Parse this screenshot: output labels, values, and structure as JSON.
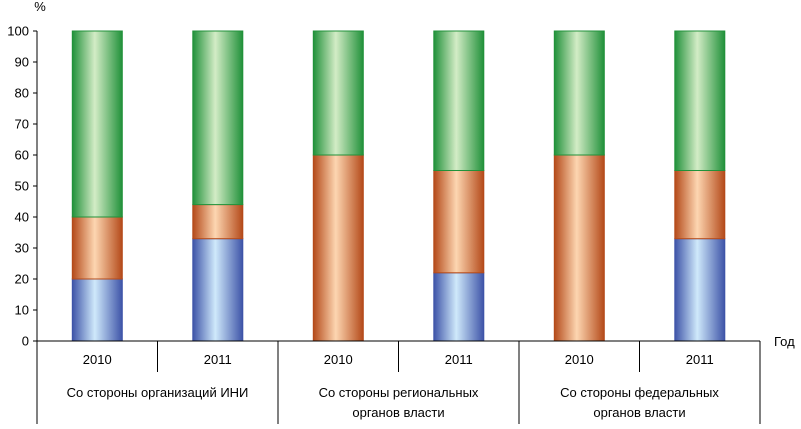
{
  "chart_data": {
    "type": "bar",
    "stacked": true,
    "ylabel": "%",
    "xlabel": "Год",
    "ylim": [
      0,
      100
    ],
    "yticks": [
      0,
      10,
      20,
      30,
      40,
      50,
      60,
      70,
      80,
      90,
      100
    ],
    "categories": [
      "2010",
      "2011",
      "2010",
      "2011",
      "2010",
      "2011"
    ],
    "groups": [
      {
        "lines": [
          "Со стороны организаций ИНИ"
        ]
      },
      {
        "lines": [
          "Со стороны региональных",
          "органов власти"
        ]
      },
      {
        "lines": [
          "Со стороны федеральных",
          "органов власти"
        ]
      }
    ],
    "series": [
      {
        "values": [
          20,
          33,
          0,
          22,
          0,
          33
        ]
      },
      {
        "values": [
          20,
          11,
          60,
          33,
          60,
          22
        ]
      },
      {
        "values": [
          60,
          56,
          40,
          45,
          40,
          45
        ]
      }
    ],
    "colors": {
      "series_1": [
        "#3e54a8",
        "#cfe9fb"
      ],
      "series_2": [
        "#b44a1a",
        "#fdd6b1"
      ],
      "series_3": [
        "#21913a",
        "#d3ecc6"
      ]
    },
    "grid": false,
    "legend": "none"
  }
}
